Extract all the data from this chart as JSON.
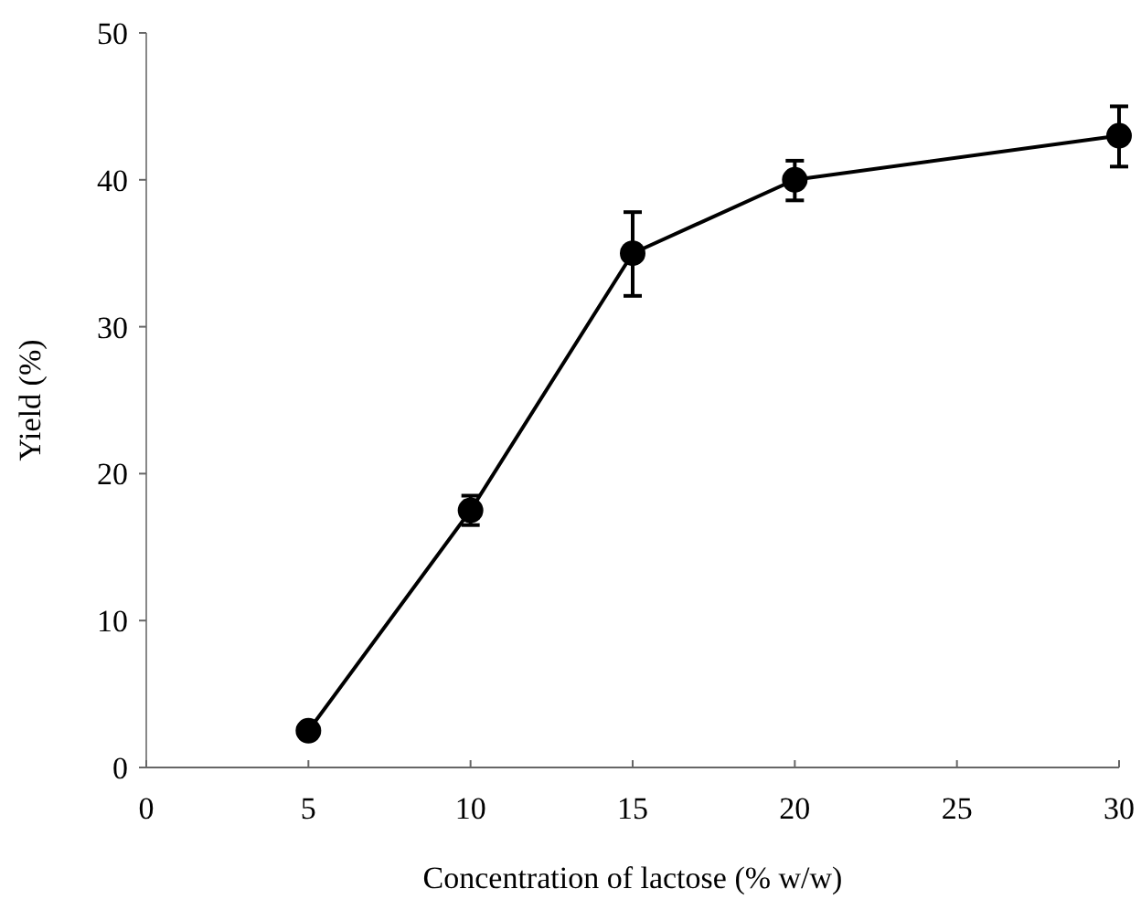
{
  "chart_data": {
    "type": "line",
    "xlabel": "Concentration of lactose (% w/w)",
    "ylabel": "Yield (%)",
    "x": [
      5,
      10,
      15,
      20,
      30
    ],
    "series": [
      {
        "color": "#000000",
        "values": [
          2.5,
          17.5,
          35,
          40,
          43
        ],
        "errors": [
          null,
          1,
          [
            32.1,
            37.8
          ],
          [
            38.6,
            41.3
          ],
          [
            40.9,
            45
          ]
        ]
      }
    ],
    "xlim": [
      0,
      30
    ],
    "xticks": [
      0,
      5,
      10,
      15,
      20,
      25,
      30
    ],
    "ylim": [
      0,
      50
    ],
    "yticks": [
      0,
      10,
      20,
      30,
      40,
      50
    ],
    "grid": false,
    "marker": "circle",
    "line_style": "solid"
  }
}
